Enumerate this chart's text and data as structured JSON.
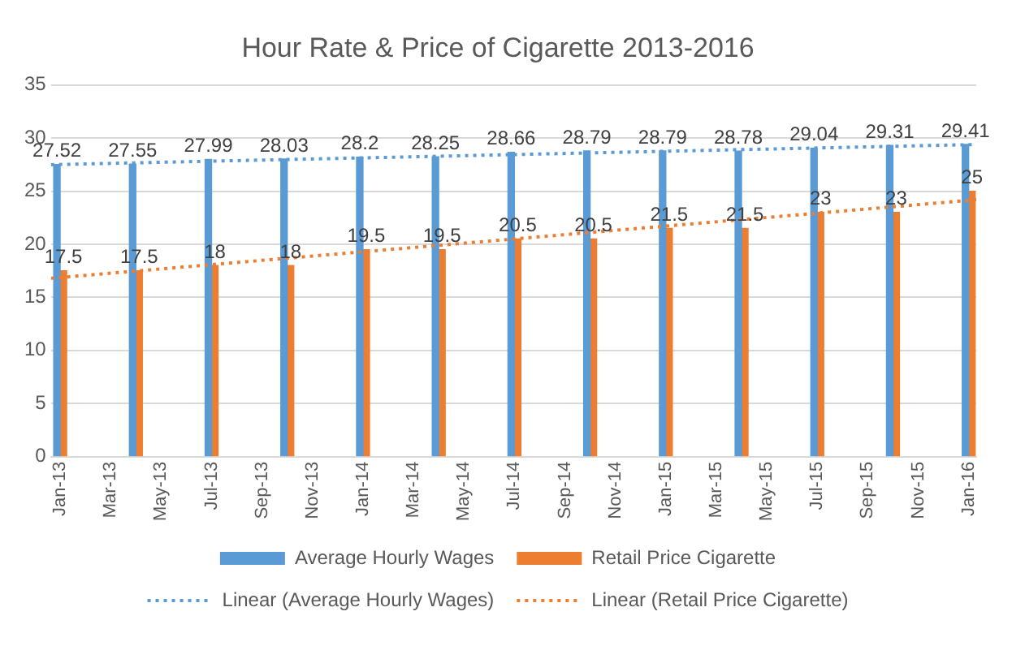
{
  "chart_data": {
    "type": "bar",
    "title": "Hour Rate & Price of Cigarette 2013-2016",
    "x": [
      "2013-01",
      "2013-04",
      "2013-07",
      "2013-10",
      "2014-01",
      "2014-04",
      "2014-07",
      "2014-10",
      "2015-01",
      "2015-04",
      "2015-07",
      "2015-10",
      "2016-01"
    ],
    "series": [
      {
        "name": "Average Hourly Wages",
        "color": "#5b9bd5",
        "values": [
          27.52,
          27.55,
          27.99,
          28.03,
          28.2,
          28.25,
          28.66,
          28.79,
          28.79,
          28.78,
          29.04,
          29.31,
          29.41
        ],
        "value_labels": [
          "27.52",
          "27.55",
          "27.99",
          "28.03",
          "28.2",
          "28.25",
          "28.66",
          "28.79",
          "28.79",
          "28.78",
          "29.04",
          "29.31",
          "29.41"
        ]
      },
      {
        "name": "Retail Price Cigarette",
        "color": "#ed7d31",
        "values": [
          17.5,
          17.5,
          18,
          18,
          19.5,
          19.5,
          20.5,
          20.5,
          21.5,
          21.5,
          23,
          23,
          25
        ],
        "value_labels": [
          "17.5",
          "17.5",
          "18",
          "18",
          "19.5",
          "19.5",
          "20.5",
          "20.5",
          "21.5",
          "21.5",
          "23",
          "23",
          "25"
        ]
      },
      {
        "name": "Linear (Average Hourly Wages)",
        "type": "line",
        "color": "#5b9bd5",
        "line_style": "dotted",
        "marker": "none",
        "x": [
          "2012-12-20",
          "2016-01-10"
        ],
        "values": [
          27.5,
          29.4
        ]
      },
      {
        "name": "Linear (Retail Price Cigarette)",
        "type": "line",
        "color": "#ed7d31",
        "line_style": "dotted",
        "marker": "none",
        "x": [
          "2012-12-20",
          "2016-01-10"
        ],
        "values": [
          16.8,
          24.2
        ]
      }
    ],
    "xlim": [
      "2012-12-20",
      "2016-01-10"
    ],
    "xticks": [
      {
        "value": "2013-01",
        "label": "Jan-13"
      },
      {
        "value": "2013-03",
        "label": "Mar-13"
      },
      {
        "value": "2013-05",
        "label": "May-13"
      },
      {
        "value": "2013-07",
        "label": "Jul-13"
      },
      {
        "value": "2013-09",
        "label": "Sep-13"
      },
      {
        "value": "2013-11",
        "label": "Nov-13"
      },
      {
        "value": "2014-01",
        "label": "Jan-14"
      },
      {
        "value": "2014-03",
        "label": "Mar-14"
      },
      {
        "value": "2014-05",
        "label": "May-14"
      },
      {
        "value": "2014-07",
        "label": "Jul-14"
      },
      {
        "value": "2014-09",
        "label": "Sep-14"
      },
      {
        "value": "2014-11",
        "label": "Nov-14"
      },
      {
        "value": "2015-01",
        "label": "Jan-15"
      },
      {
        "value": "2015-03",
        "label": "Mar-15"
      },
      {
        "value": "2015-05",
        "label": "May-15"
      },
      {
        "value": "2015-07",
        "label": "Jul-15"
      },
      {
        "value": "2015-09",
        "label": "Sep-15"
      },
      {
        "value": "2015-11",
        "label": "Nov-15"
      },
      {
        "value": "2016-01",
        "label": "Jan-16"
      }
    ],
    "ylim": [
      0,
      35
    ],
    "yticks": [
      0,
      5,
      10,
      15,
      20,
      25,
      30,
      35
    ],
    "grid": "y",
    "legend": "bottom"
  }
}
